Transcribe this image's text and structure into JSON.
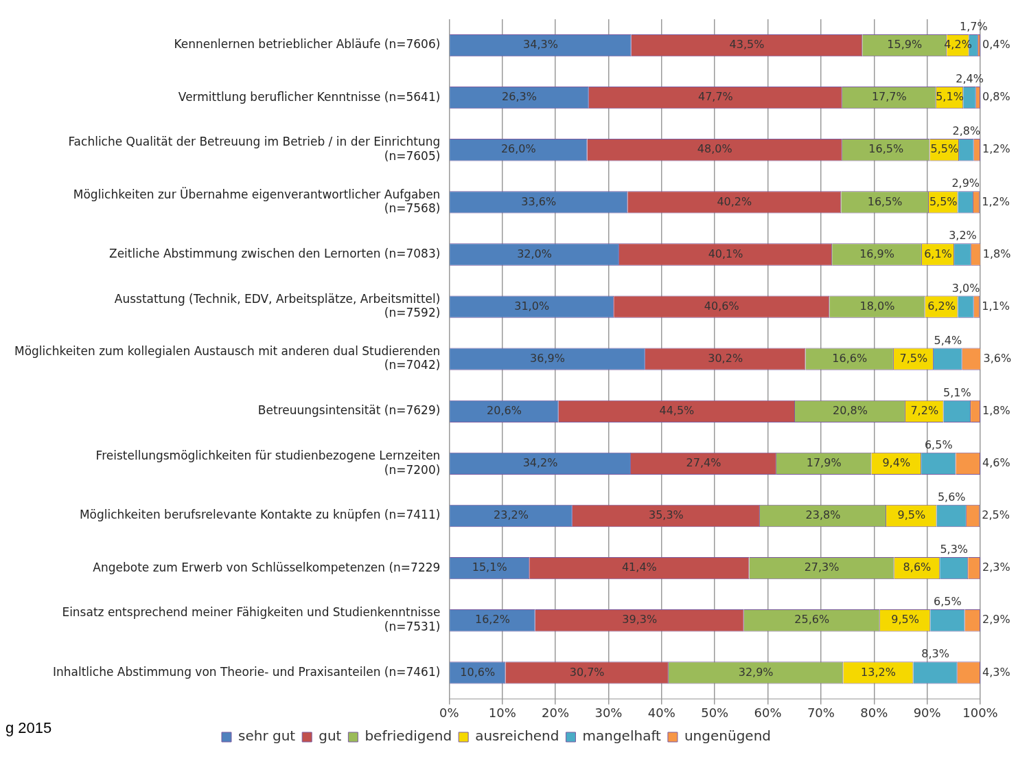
{
  "chart_data": {
    "type": "bar",
    "orientation": "horizontal",
    "stacked": true,
    "categories": [
      "Kennenlernen betrieblicher Abläufe (n=7606)",
      "Vermittlung beruflicher Kenntnisse (n=5641)",
      "Fachliche Qualität der Betreuung im Betrieb / in der Einrichtung (n=7605)",
      "Möglichkeiten zur Übernahme eigenverantwortlicher Aufgaben (n=7568)",
      "Zeitliche Abstimmung zwischen den Lernorten (n=7083)",
      "Ausstattung (Technik, EDV, Arbeitsplätze, Arbeitsmittel) (n=7592)",
      "Möglichkeiten zum kollegialen Austausch mit anderen dual Studierenden (n=7042)",
      "Betreuungsintensität (n=7629)",
      "Freistellungsmöglichkeiten für studienbezogene Lernzeiten (n=7200)",
      "Möglichkeiten berufsrelevante Kontakte zu knüpfen (n=7411)",
      "Angebote zum Erwerb von Schlüsselkompetenzen (n=7229",
      "Einsatz entsprechend meiner Fähigkeiten und Studienkenntnisse (n=7531)",
      "Inhaltliche Abstimmung von Theorie- und Praxisanteilen (n=7461)"
    ],
    "series": [
      {
        "name": "sehr gut",
        "color": "#4f81bd",
        "values": [
          34.3,
          26.3,
          26.0,
          33.6,
          32.0,
          31.0,
          36.9,
          20.6,
          34.2,
          23.2,
          15.1,
          16.2,
          10.6
        ],
        "value_labels": [
          "34,3%",
          "26,3%",
          "26,0%",
          "33,6%",
          "32,0%",
          "31,0%",
          "36,9%",
          "20,6%",
          "34,2%",
          "23,2%",
          "15,1%",
          "16,2%",
          "10,6%"
        ]
      },
      {
        "name": "gut",
        "color": "#c0504d",
        "values": [
          43.5,
          47.7,
          48.0,
          40.2,
          40.1,
          40.6,
          30.2,
          44.5,
          27.4,
          35.3,
          41.4,
          39.3,
          30.7
        ],
        "value_labels": [
          "43,5%",
          "47,7%",
          "48,0%",
          "40,2%",
          "40,1%",
          "40,6%",
          "30,2%",
          "44,5%",
          "27,4%",
          "35,3%",
          "41,4%",
          "39,3%",
          "30,7%"
        ]
      },
      {
        "name": "befriedigend",
        "color": "#9bbb59",
        "values": [
          15.9,
          17.7,
          16.5,
          16.5,
          16.9,
          18.0,
          16.6,
          20.8,
          17.9,
          23.8,
          27.3,
          25.6,
          32.9
        ],
        "value_labels": [
          "15,9%",
          "17,7%",
          "16,5%",
          "16,5%",
          "16,9%",
          "18,0%",
          "16,6%",
          "20,8%",
          "17,9%",
          "23,8%",
          "27,3%",
          "25,6%",
          "32,9%"
        ]
      },
      {
        "name": "ausreichend",
        "color": "#f5d800",
        "values": [
          4.2,
          5.1,
          5.5,
          5.5,
          6.1,
          6.2,
          7.5,
          7.2,
          9.4,
          9.5,
          8.6,
          9.5,
          13.2
        ],
        "value_labels": [
          "4,2%",
          "5,1%",
          "5,5%",
          "5,5%",
          "6,1%",
          "6,2%",
          "7,5%",
          "7,2%",
          "9,4%",
          "9,5%",
          "8,6%",
          "9,5%",
          "13,2%"
        ]
      },
      {
        "name": "mangelhaft",
        "color": "#4bacc6",
        "values": [
          1.7,
          2.4,
          2.8,
          2.9,
          3.2,
          3.0,
          5.4,
          5.1,
          6.5,
          5.6,
          5.3,
          6.5,
          8.3
        ],
        "value_labels": [
          "1,7%",
          "2,4%",
          "2,8%",
          "2,9%",
          "3,2%",
          "3,0%",
          "5,4%",
          "5,1%",
          "6,5%",
          "5,6%",
          "5,3%",
          "6,5%",
          "8,3%"
        ]
      },
      {
        "name": "ungenügend",
        "color": "#f79646",
        "values": [
          0.4,
          0.8,
          1.2,
          1.2,
          1.8,
          1.1,
          3.6,
          1.8,
          4.6,
          2.5,
          2.3,
          2.9,
          4.3
        ],
        "value_labels": [
          "0,4%",
          "0,8%",
          "1,2%",
          "1,2%",
          "1,8%",
          "1,1%",
          "3,6%",
          "1,8%",
          "4,6%",
          "2,5%",
          "2,3%",
          "2,9%",
          "4,3%"
        ]
      }
    ],
    "xlim": [
      0,
      100
    ],
    "xticks": [
      {
        "value": 0,
        "label": "0%"
      },
      {
        "value": 10,
        "label": "10%"
      },
      {
        "value": 20,
        "label": "20%"
      },
      {
        "value": 30,
        "label": "30%"
      },
      {
        "value": 40,
        "label": "40%"
      },
      {
        "value": 50,
        "label": "50%"
      },
      {
        "value": 60,
        "label": "60%"
      },
      {
        "value": 70,
        "label": "70%"
      },
      {
        "value": 80,
        "label": "80%"
      },
      {
        "value": 90,
        "label": "90%"
      },
      {
        "value": 100,
        "label": "100%"
      }
    ],
    "grid": "x",
    "legend": "bottom",
    "annotations": [
      "g 2015"
    ]
  }
}
